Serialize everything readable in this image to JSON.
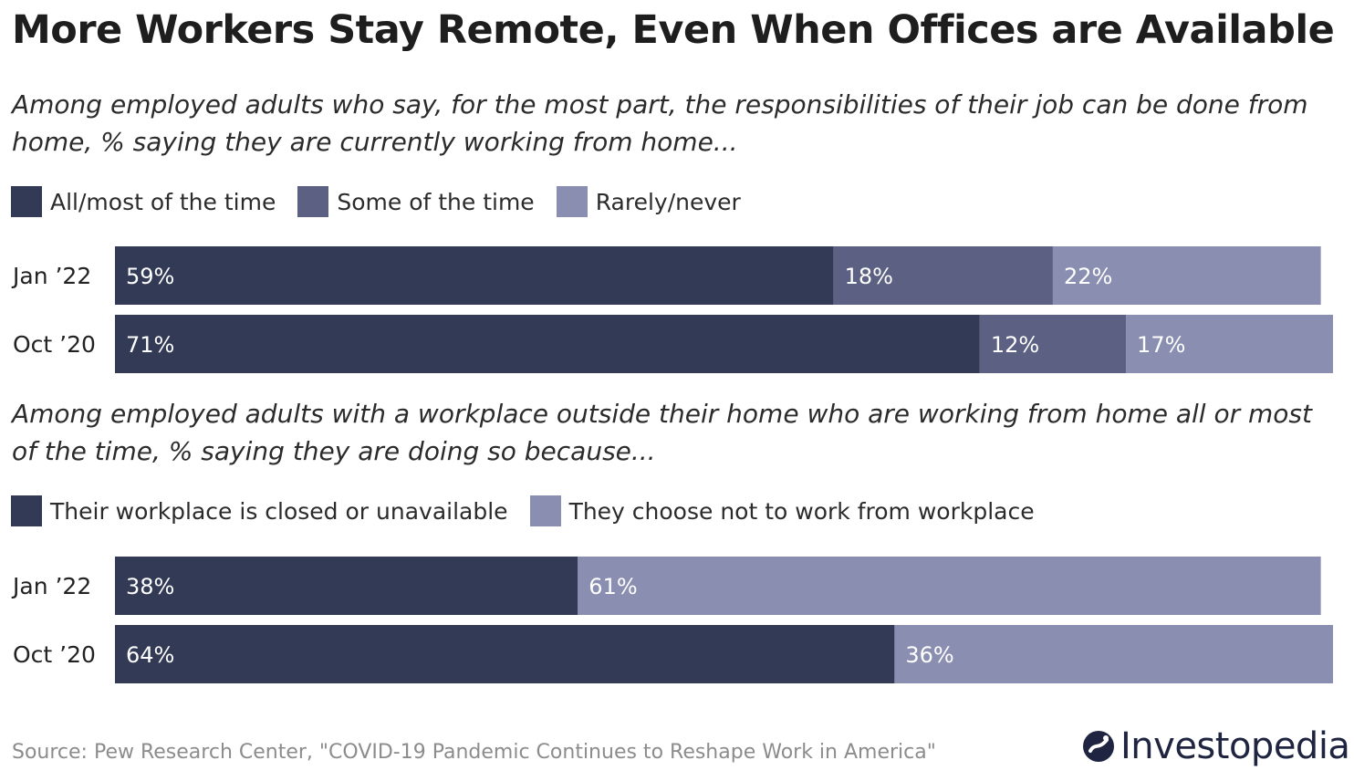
{
  "title": "More Workers Stay Remote, Even When Offices are Available",
  "source": "Source: Pew Research Center, \"COVID-19 Pandemic Continues to Reshape Work in America\"",
  "logo": {
    "text": "Investopedia",
    "icon": "investopedia-logo-icon"
  },
  "colors": {
    "dark": "#333a56",
    "mid": "#5c6183",
    "light": "#8a8eb1",
    "segment_label": "#ffffff"
  },
  "chart_data": [
    {
      "type": "bar",
      "orientation": "horizontal",
      "stacked": true,
      "title": "Among employed adults who say, for the most part, the responsibilities of their job can be done from home, % saying they are currently working from home...",
      "categories": [
        "Jan ’22",
        "Oct ’20"
      ],
      "series": [
        {
          "name": "All/most of the time",
          "values": [
            59,
            71
          ],
          "labels": [
            "59%",
            "71%"
          ],
          "color": "#333a56"
        },
        {
          "name": "Some of the time",
          "values": [
            18,
            12
          ],
          "labels": [
            "18%",
            "12%"
          ],
          "color": "#5c6183"
        },
        {
          "name": "Rarely/never",
          "values": [
            22,
            17
          ],
          "labels": [
            "22%",
            "17%"
          ],
          "color": "#8a8eb1"
        }
      ],
      "legend": "top-left",
      "grid": false,
      "xlim": [
        0,
        100
      ]
    },
    {
      "type": "bar",
      "orientation": "horizontal",
      "stacked": true,
      "title": "Among employed adults with a workplace outside their home who are working from home all or most of the time, % saying they are doing so because...",
      "categories": [
        "Jan ’22",
        "Oct ’20"
      ],
      "series": [
        {
          "name": "Their workplace is closed or unavailable",
          "values": [
            38,
            64
          ],
          "labels": [
            "38%",
            "64%"
          ],
          "color": "#333a56"
        },
        {
          "name": "They choose not to work from workplace",
          "values": [
            61,
            36
          ],
          "labels": [
            "61%",
            "36%"
          ],
          "color": "#8a8eb1"
        }
      ],
      "legend": "top-left",
      "grid": false,
      "xlim": [
        0,
        100
      ]
    }
  ]
}
